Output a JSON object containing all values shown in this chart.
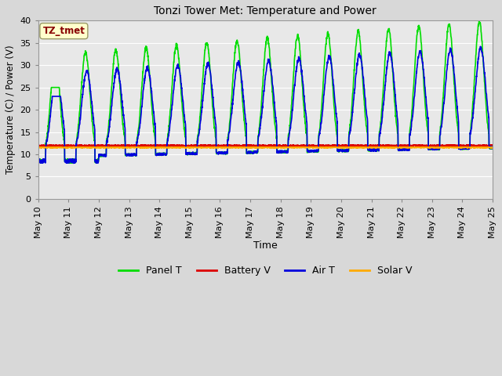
{
  "title": "Tonzi Tower Met: Temperature and Power",
  "xlabel": "Time",
  "ylabel": "Temperature (C) / Power (V)",
  "ylim": [
    0,
    40
  ],
  "yticks": [
    0,
    5,
    10,
    15,
    20,
    25,
    30,
    35,
    40
  ],
  "x_labels": [
    "May 10",
    "May 11",
    "May 12",
    "May 13",
    "May 14",
    "May 15",
    "May 16",
    "May 17",
    "May 18",
    "May 19",
    "May 20",
    "May 21",
    "May 22",
    "May 23",
    "May 24",
    "May 25"
  ],
  "annotation_text": "TZ_tmet",
  "annotation_bg": "#ffffcc",
  "annotation_fg": "#880000",
  "fig_bg": "#d8d8d8",
  "plot_bg": "#e8e8e8",
  "colors": {
    "Panel T": "#00dd00",
    "Battery V": "#dd0000",
    "Air T": "#0000dd",
    "Solar V": "#ffaa00"
  },
  "linewidth": 1.2
}
